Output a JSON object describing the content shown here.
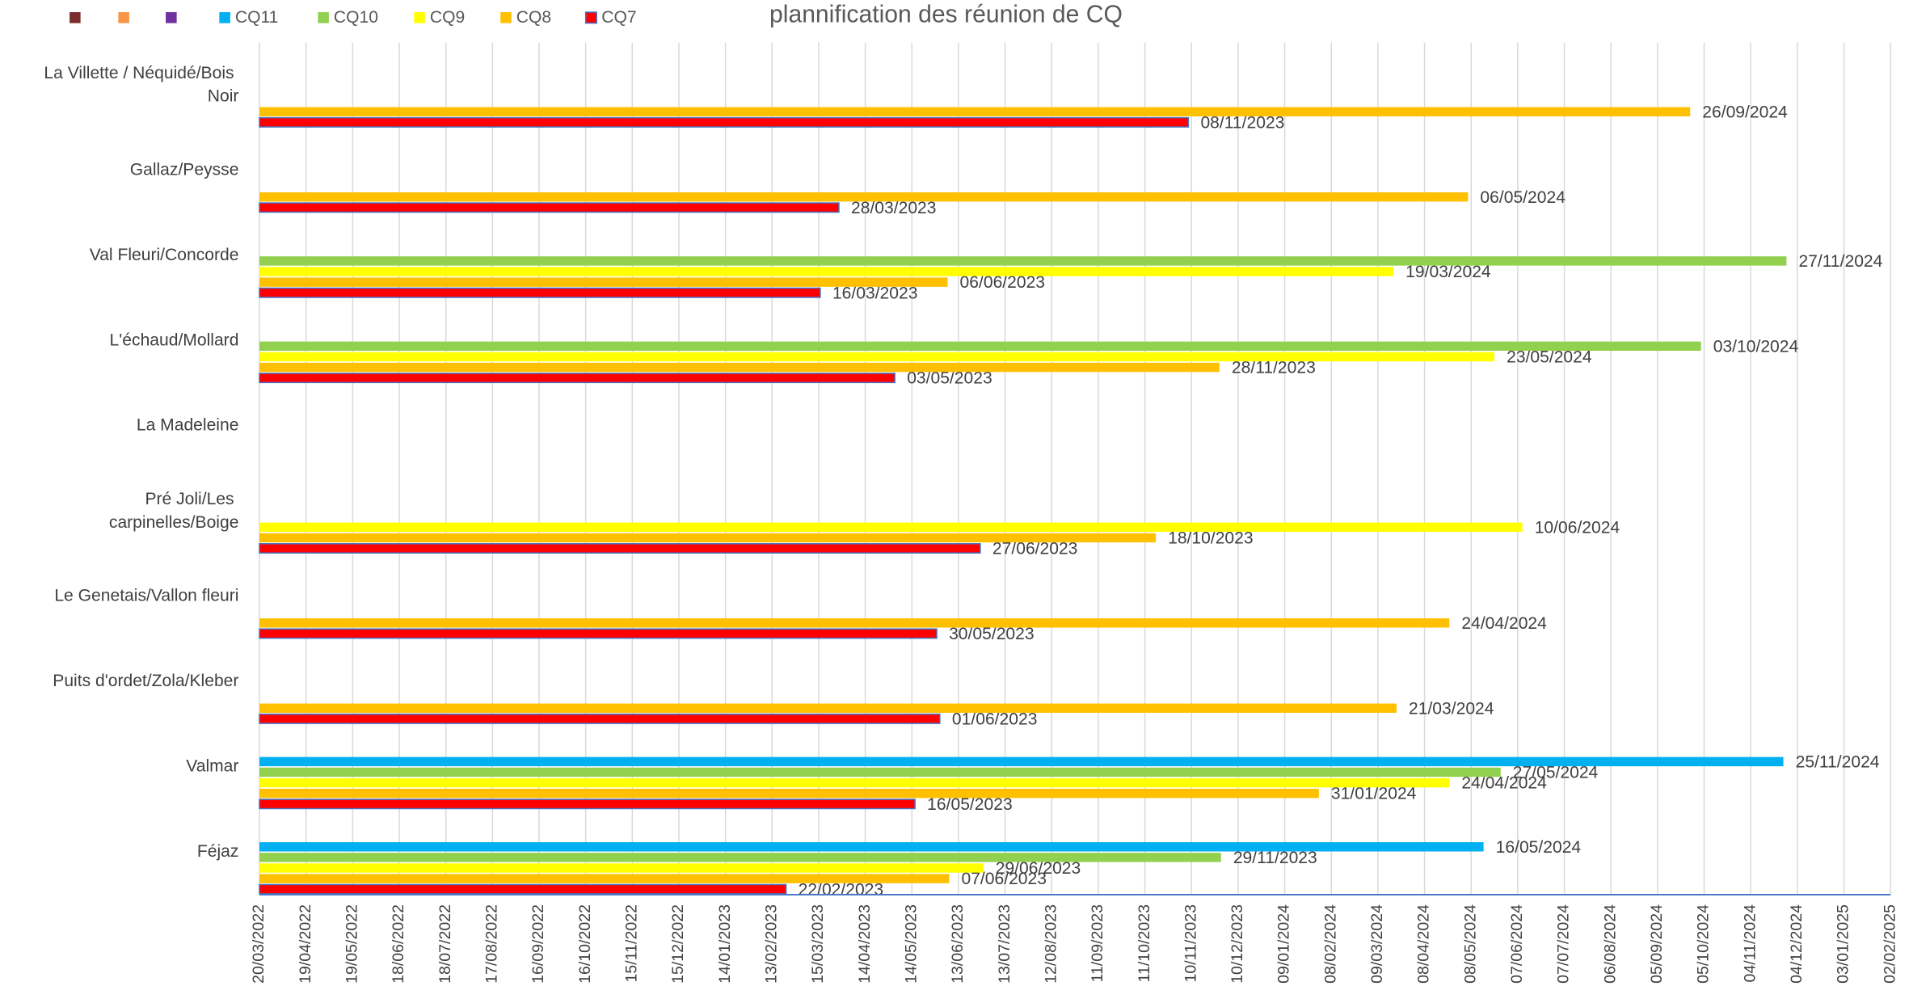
{
  "chart_data": {
    "type": "barh",
    "title": "plannification des réunion de CQ",
    "categories": [
      "La Villette / Néquidé/Bois Noir",
      "Gallaz/Peysse",
      "Val Fleuri/Concorde",
      "L'échaud/Mollard",
      "La Madeleine",
      "Pré Joli/Les carpinelles/Boige",
      "Le Genetais/Vallon fleuri",
      "Puits d'ordet/Zola/Kleber",
      "Valmar",
      "Féjaz"
    ],
    "series": [
      {
        "name": "CQ7",
        "color": "#ff0000",
        "edgecolor": "#4472c4",
        "values": [
          "08/11/2023",
          "28/03/2023",
          "16/03/2023",
          "03/05/2023",
          null,
          "27/06/2023",
          "30/05/2023",
          "01/06/2023",
          "16/05/2023",
          "22/02/2023"
        ]
      },
      {
        "name": "CQ8",
        "color": "#ffc000",
        "values": [
          "26/09/2024",
          "06/05/2024",
          "06/06/2023",
          "28/11/2023",
          null,
          "18/10/2023",
          "24/04/2024",
          "21/03/2024",
          "31/01/2024",
          "07/06/2023"
        ]
      },
      {
        "name": "CQ9",
        "color": "#ffff00",
        "values": [
          null,
          null,
          "19/03/2024",
          "23/05/2024",
          null,
          "10/06/2024",
          null,
          null,
          "24/04/2024",
          "29/06/2023"
        ]
      },
      {
        "name": "CQ10",
        "color": "#92d050",
        "values": [
          null,
          null,
          "27/11/2024",
          "03/10/2024",
          null,
          null,
          null,
          null,
          "27/05/2024",
          "29/11/2023"
        ]
      },
      {
        "name": "CQ11",
        "color": "#00b0f0",
        "values": [
          null,
          null,
          null,
          null,
          null,
          null,
          null,
          null,
          "25/11/2024",
          "16/05/2024"
        ]
      }
    ],
    "xlim": [
      "20/03/2022",
      "02/02/2025"
    ],
    "xticks": [
      "20/03/2022",
      "19/04/2022",
      "19/05/2022",
      "18/06/2022",
      "18/07/2022",
      "17/08/2022",
      "16/09/2022",
      "16/10/2022",
      "15/11/2022",
      "15/12/2022",
      "14/01/2023",
      "13/02/2023",
      "15/03/2023",
      "14/04/2023",
      "14/05/2023",
      "13/06/2023",
      "13/07/2023",
      "12/08/2023",
      "11/09/2023",
      "11/10/2023",
      "10/11/2023",
      "10/12/2023",
      "09/01/2024",
      "08/02/2024",
      "09/03/2024",
      "08/04/2024",
      "08/05/2024",
      "07/06/2024",
      "07/07/2024",
      "06/08/2024",
      "05/09/2024",
      "05/10/2024",
      "04/11/2024",
      "04/12/2024",
      "03/01/2025",
      "02/02/2025"
    ],
    "grid": true
  }
}
